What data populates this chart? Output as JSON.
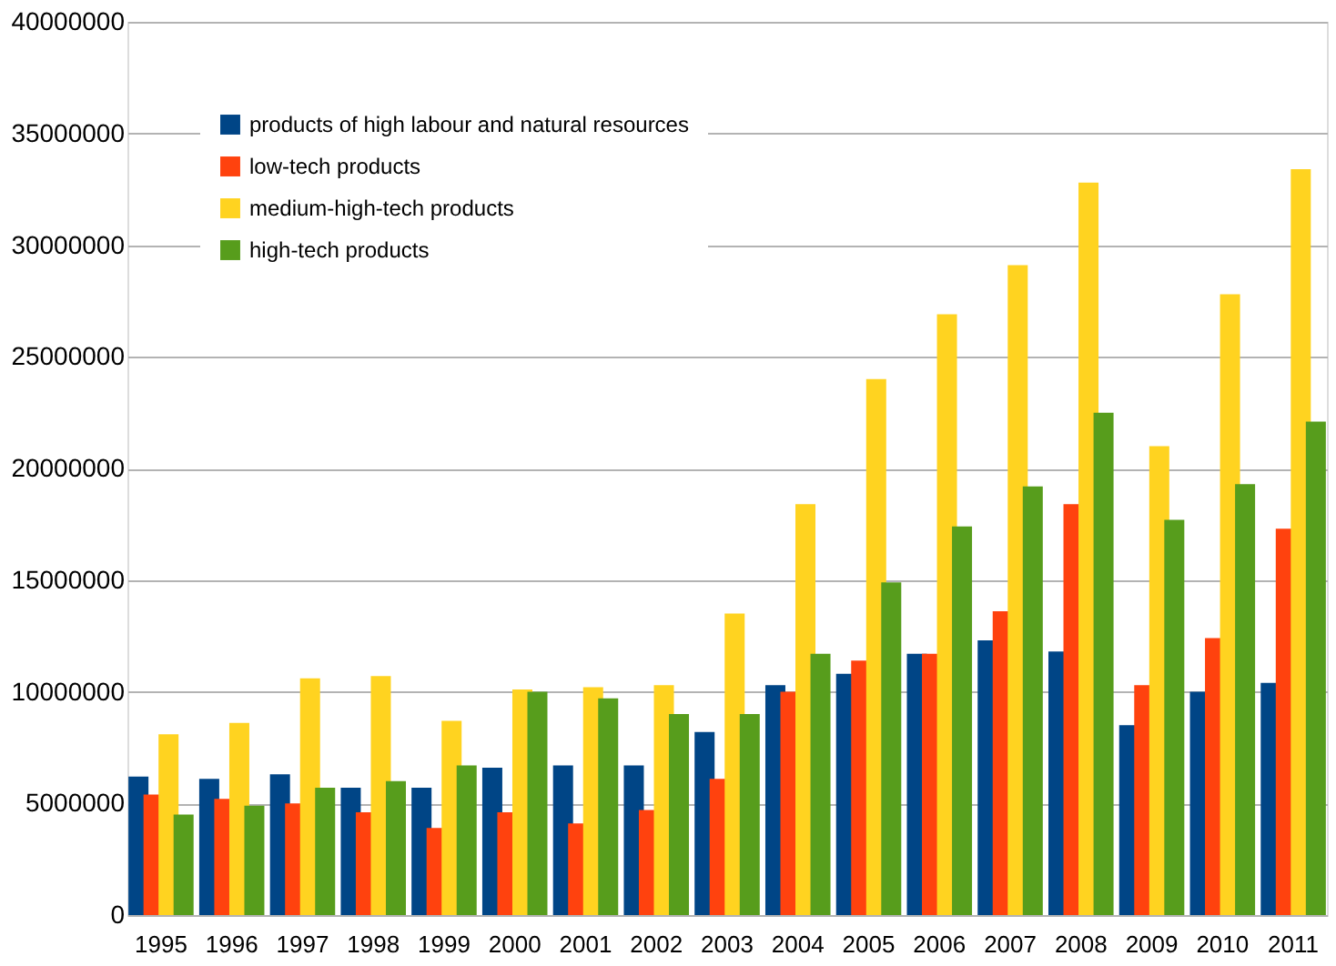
{
  "chart_data": {
    "type": "bar",
    "categories": [
      "1995",
      "1996",
      "1997",
      "1998",
      "1999",
      "2000",
      "2001",
      "2002",
      "2003",
      "2004",
      "2005",
      "2006",
      "2007",
      "2008",
      "2009",
      "2010",
      "2011"
    ],
    "series": [
      {
        "name": "products of high labour and natural resources",
        "color": "#004586",
        "values": [
          6200000,
          6100000,
          6300000,
          5700000,
          5700000,
          6600000,
          6700000,
          6700000,
          8200000,
          10300000,
          10800000,
          11700000,
          12300000,
          11800000,
          8500000,
          10000000,
          10400000
        ]
      },
      {
        "name": "low-tech products",
        "color": "#ff420e",
        "values": [
          5400000,
          5200000,
          5000000,
          4600000,
          3900000,
          4600000,
          4100000,
          4700000,
          6100000,
          10000000,
          11400000,
          11700000,
          13600000,
          18400000,
          10300000,
          12400000,
          17300000
        ]
      },
      {
        "name": "medium-high-tech products",
        "color": "#ffd320",
        "values": [
          8100000,
          8600000,
          10600000,
          10700000,
          8700000,
          10100000,
          10200000,
          10300000,
          13500000,
          18400000,
          24000000,
          26900000,
          29100000,
          32800000,
          21000000,
          27800000,
          33400000
        ]
      },
      {
        "name": "high-tech products",
        "color": "#579d1c",
        "values": [
          4500000,
          4900000,
          5700000,
          6000000,
          6700000,
          10000000,
          9700000,
          9000000,
          9000000,
          11700000,
          14900000,
          17400000,
          19200000,
          22500000,
          17700000,
          19300000,
          22100000
        ]
      }
    ],
    "ylim": [
      0,
      40000000
    ],
    "yticks": [
      0,
      5000000,
      10000000,
      15000000,
      20000000,
      25000000,
      30000000,
      35000000,
      40000000
    ],
    "grid": "y",
    "legend": "top left"
  }
}
